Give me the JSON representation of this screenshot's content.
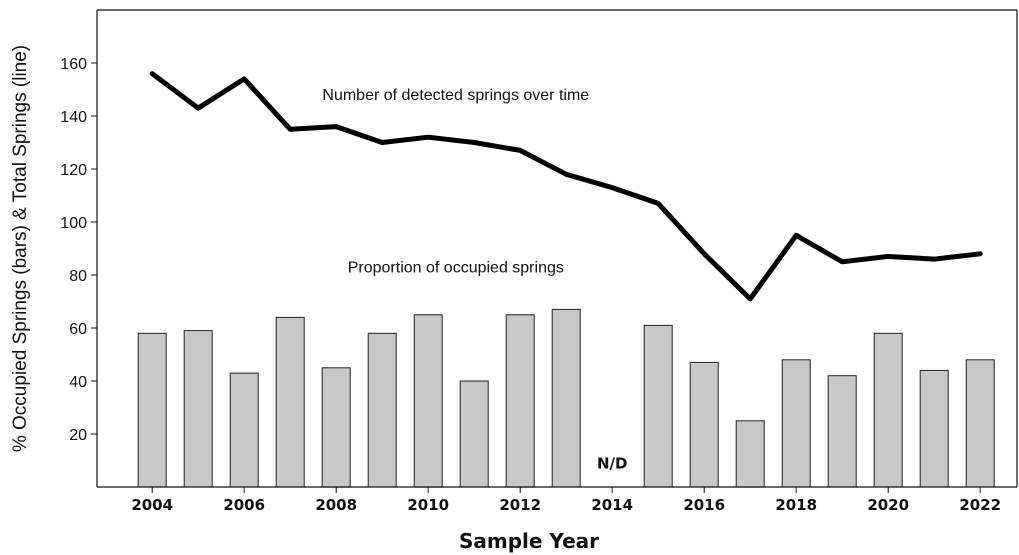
{
  "chart_data": {
    "type": "bar",
    "xlabel": "Sample Year",
    "ylabel": "% Occupied Springs (bars) & Total Springs (line)",
    "ylim": [
      0,
      180
    ],
    "yticks": [
      20,
      40,
      60,
      80,
      100,
      120,
      140,
      160
    ],
    "xlim": [
      2002.8,
      2022.8
    ],
    "xticks": [
      2004,
      2006,
      2008,
      2010,
      2012,
      2014,
      2016,
      2018,
      2020,
      2022
    ],
    "grid": false,
    "series": [
      {
        "type": "bar",
        "color": "#c8c8c8",
        "x": [
          2004,
          2005,
          2006,
          2007,
          2008,
          2009,
          2010,
          2011,
          2012,
          2013,
          2014,
          2015,
          2016,
          2017,
          2018,
          2019,
          2020,
          2021,
          2022
        ],
        "values": [
          58,
          59,
          43,
          64,
          45,
          58,
          65,
          40,
          65,
          67,
          null,
          61,
          47,
          25,
          48,
          42,
          58,
          44,
          48
        ]
      },
      {
        "type": "line",
        "color": "#000000",
        "x": [
          2004,
          2005,
          2006,
          2007,
          2008,
          2009,
          2010,
          2011,
          2012,
          2013,
          2014,
          2015,
          2016,
          2017,
          2018,
          2019,
          2020,
          2021,
          2022
        ],
        "values": [
          156,
          143,
          154,
          135,
          136,
          130,
          132,
          130,
          127,
          118,
          113,
          107,
          88,
          71,
          95,
          85,
          87,
          86,
          88
        ]
      }
    ],
    "annotations": [
      {
        "text": "Number of detected springs over time",
        "x": 2010.6,
        "y": 146
      },
      {
        "text": "Proportion of occupied springs",
        "x": 2010.6,
        "y": 81
      },
      {
        "text": "N/D",
        "x": 2014,
        "y": 7
      }
    ]
  }
}
